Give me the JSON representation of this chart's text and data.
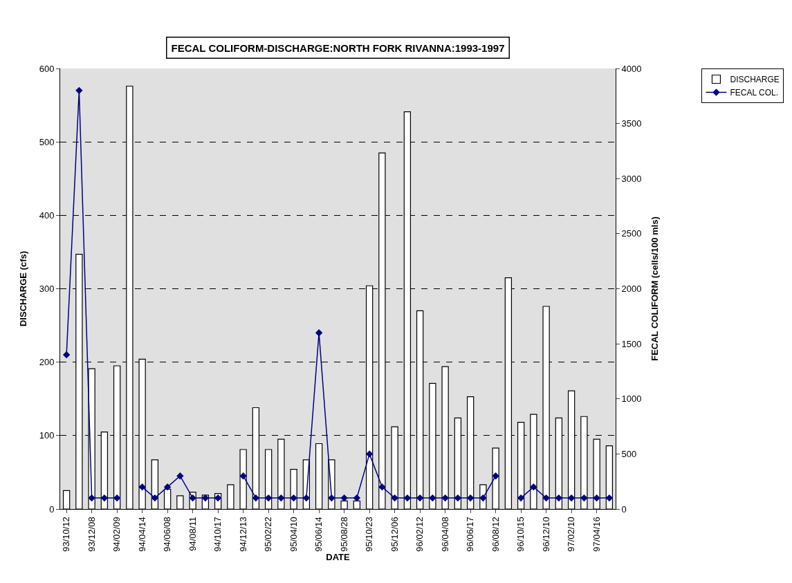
{
  "chart_data": {
    "type": "bar",
    "title": "FECAL COLIFORM-DISCHARGE:NORTH FORK RIVANNA:1993-1997",
    "xlabel": "DATE",
    "ylabel": "DISCHARGE (cfs)",
    "y2label": "FECAL COLIFORM (cells/100 mls)",
    "categories": [
      "93/10/12",
      null,
      "93/12/08",
      null,
      "94/02/09",
      null,
      "94/04/14",
      null,
      "94/06/08",
      null,
      "94/08/11",
      null,
      "94/10/17",
      null,
      "94/12/13",
      null,
      "95/02/22",
      null,
      "95/04/10",
      null,
      "95/06/14",
      null,
      "95/08/28",
      null,
      "95/10/23",
      null,
      "95/12/06",
      null,
      "96/02/12",
      null,
      "96/04/08",
      null,
      "96/06/17",
      null,
      "96/08/12",
      null,
      "96/10/15",
      null,
      "96/12/10",
      null,
      "97/02/10",
      null,
      "97/04/16",
      null
    ],
    "series": [
      {
        "name": "DISCHARGE",
        "color": "#ffffff",
        "values": [
          25,
          347,
          191,
          105,
          195,
          576,
          204,
          67,
          27,
          18,
          23,
          19,
          21,
          33,
          81,
          138,
          81,
          95,
          54,
          67,
          89,
          67,
          11,
          11,
          304,
          485,
          112,
          541,
          270,
          171,
          194,
          124,
          153,
          33,
          83,
          315,
          118,
          129,
          276,
          124,
          161,
          126,
          95,
          86
        ]
      },
      {
        "name": "FECAL COL.",
        "type": "line",
        "axis": "y2",
        "color": "#000080",
        "marker": "diamond",
        "values": [
          1400,
          3800,
          100,
          100,
          100,
          null,
          200,
          100,
          200,
          300,
          100,
          100,
          100,
          null,
          300,
          100,
          100,
          100,
          100,
          100,
          1600,
          100,
          100,
          100,
          500,
          200,
          100,
          100,
          100,
          100,
          100,
          100,
          100,
          100,
          300,
          null,
          100,
          200,
          100,
          100,
          100,
          100,
          100,
          100
        ]
      }
    ],
    "ylim": [
      0,
      600
    ],
    "yticks": [
      0,
      100,
      200,
      300,
      400,
      500,
      600
    ],
    "y2lim": [
      0,
      4000
    ],
    "y2ticks": [
      0,
      500,
      1000,
      1500,
      2000,
      2500,
      3000,
      3500,
      4000
    ],
    "grid": "y",
    "legend": "top right"
  }
}
